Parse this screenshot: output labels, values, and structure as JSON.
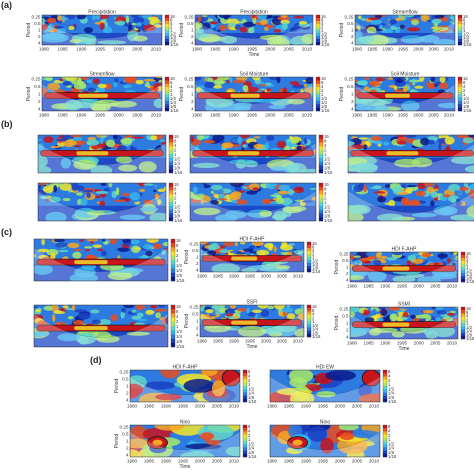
{
  "section_labels": [
    "(a)",
    "(b)",
    "(c)",
    "(d)"
  ],
  "colorbar_labels": [
    "16",
    "8",
    "4",
    "2",
    "1",
    "1/2",
    "1/4",
    "1/8",
    "1/16"
  ],
  "colorbar_labels_d": [
    "8",
    "4",
    "2",
    "1",
    "1/2",
    "1/4",
    "1/8",
    "1/16"
  ],
  "x_ticks_full": [
    "1980",
    "1985",
    "1990",
    "1995",
    "2000",
    "2005",
    "2010"
  ],
  "y_ticks": [
    "0.25",
    "0.5",
    "1",
    "2",
    "4"
  ],
  "axis_labels": {
    "time": "Time",
    "period": "Period"
  },
  "titles": {
    "precipitation": "Precipitation",
    "streamflow": "Streamflow",
    "soil_moisture": "Soil Moisture",
    "hdi_fahp": "HDI F-AHP",
    "ssfi": "SSFI",
    "ssmi": "SSMI",
    "hdi_ew": "HDI EW",
    "nino": "Nino"
  },
  "colors": {
    "low": "#1a2a9c",
    "mid": "#31a7e6",
    "high": "#f0e82a",
    "peak": "#c8141c",
    "contour": "#111111"
  }
}
